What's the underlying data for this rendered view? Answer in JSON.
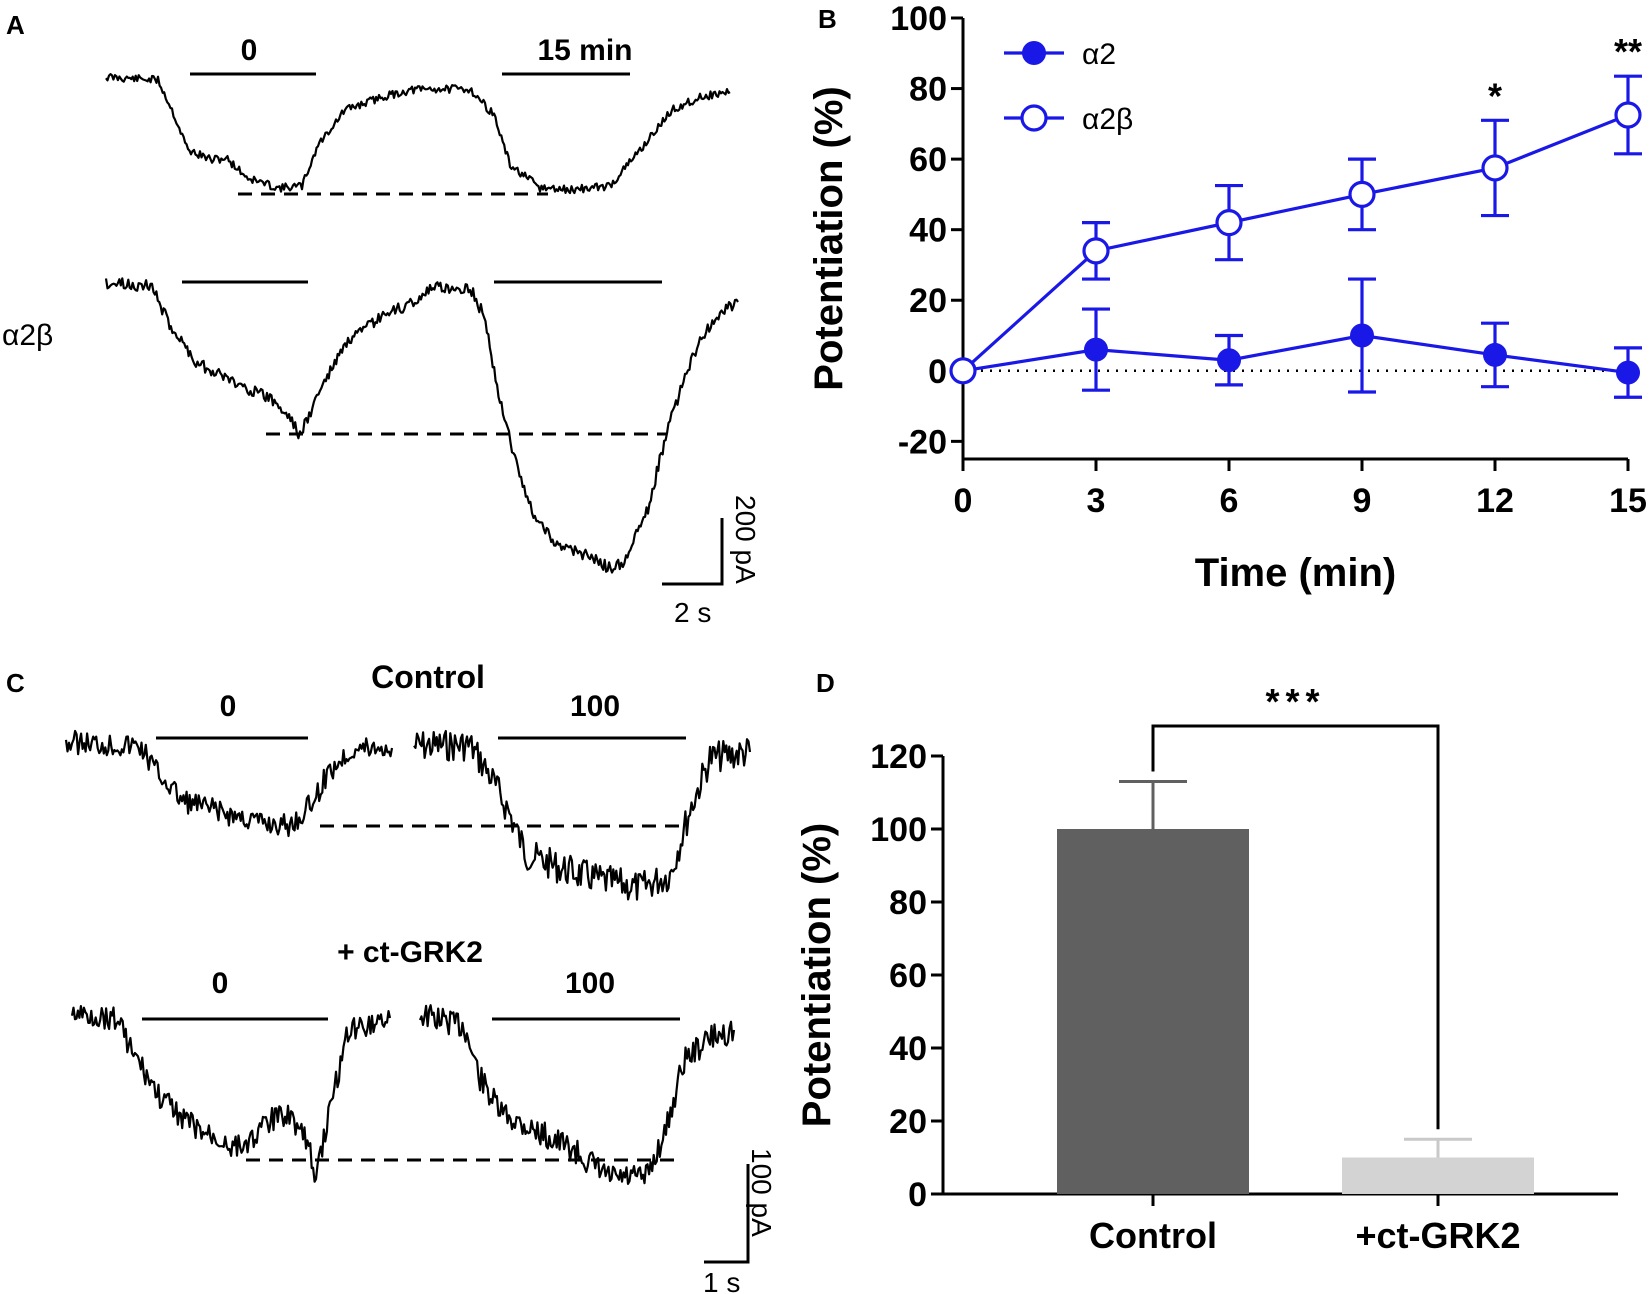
{
  "panels": {
    "A": {
      "letter": "A",
      "row1_labels": [
        "0",
        "15 min"
      ],
      "row2_label": "α2β",
      "scale_y": "200 pA",
      "scale_x": "2 s"
    },
    "C": {
      "letter": "C",
      "title_top": "Control",
      "title_bottom": "+ ct-GRK2",
      "row1_labels": [
        "0",
        "100"
      ],
      "row2_labels": [
        "0",
        "100"
      ],
      "scale_y": "100 pA",
      "scale_x": "1 s"
    }
  },
  "chart_data": [
    {
      "panel": "B",
      "type": "line",
      "xlabel": "Time (min)",
      "ylabel": "Potentiation (%)",
      "x": [
        0,
        3,
        6,
        9,
        12,
        15
      ],
      "xticks": [
        "0",
        "3",
        "6",
        "9",
        "12",
        "15"
      ],
      "yticks": [
        "-20",
        "0",
        "20",
        "40",
        "60",
        "80",
        "100"
      ],
      "xlim": [
        0,
        15
      ],
      "ylim": [
        -25,
        100
      ],
      "reference_line": 0,
      "series": [
        {
          "name": "α2",
          "marker": "filled",
          "values": [
            0,
            6,
            3,
            10,
            4.5,
            -0.5
          ],
          "errors": [
            0,
            11.5,
            7,
            16,
            9,
            7
          ]
        },
        {
          "name": "α2β",
          "marker": "open",
          "values": [
            0,
            34,
            42,
            50,
            57.5,
            72.5
          ],
          "errors": [
            0,
            8,
            10.5,
            10,
            13.5,
            11
          ]
        }
      ],
      "annotations": [
        {
          "x": 12,
          "text": "*"
        },
        {
          "x": 15,
          "text": "**"
        }
      ],
      "color": "#1a18e6"
    },
    {
      "panel": "D",
      "type": "bar",
      "categories": [
        "Control",
        "+ct-GRK2"
      ],
      "values": [
        100,
        10
      ],
      "errors": [
        13,
        5
      ],
      "colors": [
        "#606060",
        "#d3d3d3"
      ],
      "ylabel": "Potentiation (%)",
      "yticks": [
        "0",
        "20",
        "40",
        "60",
        "80",
        "100",
        "120"
      ],
      "ylim": [
        0,
        120
      ],
      "significance": "***"
    }
  ]
}
